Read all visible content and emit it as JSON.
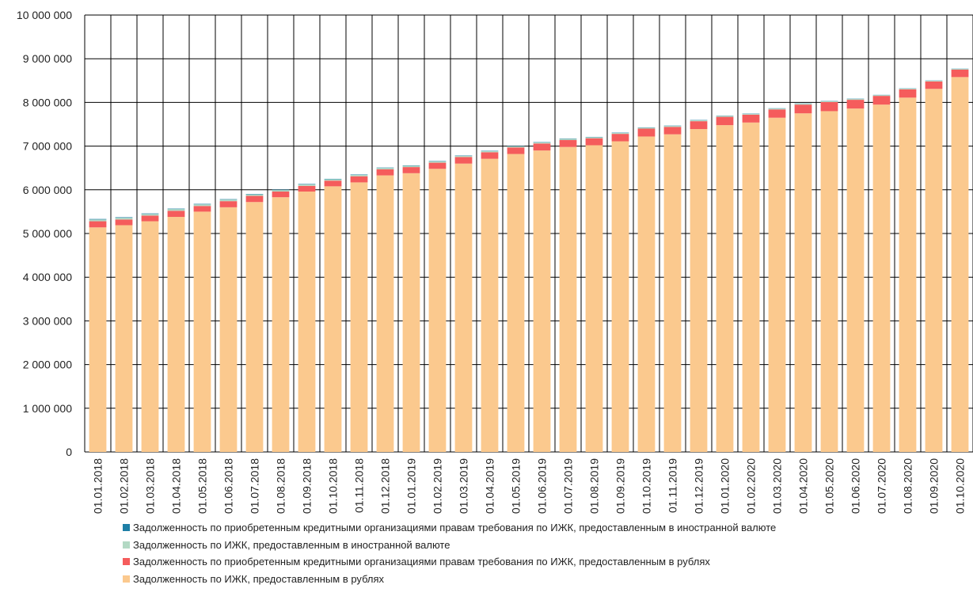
{
  "chart_data": {
    "type": "bar",
    "stacked": true,
    "title": "",
    "xlabel": "",
    "ylabel": "",
    "ylim": [
      0,
      10000000
    ],
    "yticks": [
      0,
      1000000,
      2000000,
      3000000,
      4000000,
      5000000,
      6000000,
      7000000,
      8000000,
      9000000,
      10000000
    ],
    "ytick_labels": [
      "0",
      "1 000 000",
      "2 000 000",
      "3 000 000",
      "4 000 000",
      "5 000 000",
      "6 000 000",
      "7 000 000",
      "8 000 000",
      "9 000 000",
      "10 000 000"
    ],
    "grid": {
      "horizontal": true,
      "vertical": true
    },
    "legend_position": "bottom",
    "categories": [
      "01.01.2018",
      "01.02.2018",
      "01.03.2018",
      "01.04.2018",
      "01.05.2018",
      "01.06.2018",
      "01.07.2018",
      "01.08.2018",
      "01.09.2018",
      "01.10.2018",
      "01.11.2018",
      "01.12.2018",
      "01.01.2019",
      "01.02.2019",
      "01.03.2019",
      "01.04.2019",
      "01.05.2019",
      "01.06.2019",
      "01.07.2019",
      "01.08.2019",
      "01.09.2019",
      "01.10.2019",
      "01.11.2019",
      "01.12.2019",
      "01.01.2020",
      "01.02.2020",
      "01.03.2020",
      "01.04.2020",
      "01.05.2020",
      "01.06.2020",
      "01.07.2020",
      "01.08.2020",
      "01.09.2020",
      "01.10.2020"
    ],
    "series": [
      {
        "name": "Задолженность по ИЖК, предоставленным в рублях",
        "color": "#FBC98E",
        "values": [
          5140000,
          5190000,
          5280000,
          5380000,
          5500000,
          5600000,
          5720000,
          5830000,
          5960000,
          6080000,
          6170000,
          6330000,
          6380000,
          6480000,
          6600000,
          6710000,
          6820000,
          6900000,
          6980000,
          7020000,
          7110000,
          7220000,
          7270000,
          7390000,
          7480000,
          7540000,
          7650000,
          7750000,
          7800000,
          7860000,
          7950000,
          8110000,
          8310000,
          8580000
        ]
      },
      {
        "name": "Задолженность по приобретенным кредитными организациями правам требования по ИЖК, предоставленным в рублях",
        "color": "#F55C5C",
        "values": [
          140000,
          130000,
          130000,
          140000,
          130000,
          140000,
          140000,
          130000,
          130000,
          130000,
          140000,
          140000,
          140000,
          140000,
          150000,
          150000,
          150000,
          160000,
          160000,
          160000,
          170000,
          180000,
          170000,
          180000,
          190000,
          180000,
          190000,
          200000,
          210000,
          200000,
          200000,
          190000,
          170000,
          170000
        ]
      },
      {
        "name": "Задолженность по ИЖК, предоставленным в иностранной валюте",
        "color": "#B3D9C4",
        "values": [
          40000,
          40000,
          38000,
          38000,
          37000,
          36000,
          35000,
          34000,
          33000,
          32000,
          31000,
          30000,
          30000,
          29000,
          28000,
          27000,
          26000,
          25000,
          25000,
          24000,
          23000,
          22000,
          22000,
          21000,
          21000,
          20000,
          20000,
          20000,
          19000,
          19000,
          18000,
          18000,
          18000,
          17000
        ]
      },
      {
        "name": "Задолженность по приобретенным кредитными организациями правам требования по ИЖК, предоставленным в иностранной валюте",
        "color": "#1E7FA6",
        "values": [
          12000,
          12000,
          11000,
          11000,
          11000,
          10000,
          10000,
          10000,
          10000,
          9000,
          9000,
          9000,
          9000,
          9000,
          8000,
          8000,
          8000,
          8000,
          8000,
          7000,
          7000,
          7000,
          7000,
          7000,
          6000,
          6000,
          6000,
          6000,
          6000,
          6000,
          5000,
          5000,
          5000,
          5000
        ]
      }
    ]
  },
  "legend": {
    "order": [
      3,
      2,
      1,
      0
    ]
  }
}
